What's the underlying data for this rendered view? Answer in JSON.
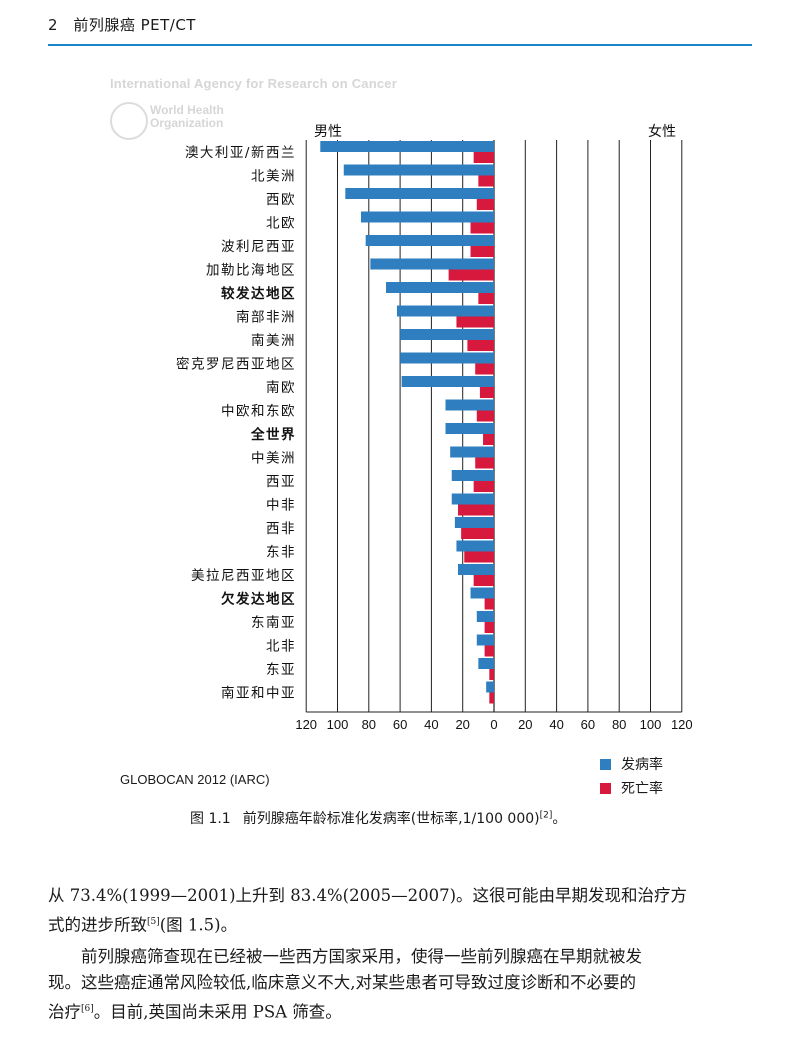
{
  "header": {
    "page": "2",
    "title": "前列腺癌 PET/CT"
  },
  "watermark": {
    "agency": "International Agency for Research on Cancer",
    "who_line1": "World Health",
    "who_line2": "Organization"
  },
  "chart_data": {
    "type": "bar",
    "orientation": "horizontal-butterfly",
    "left_label": "男性",
    "right_label": "女性",
    "categories": [
      "澳大利亚/新西兰",
      "北美洲",
      "西欧",
      "北欧",
      "波利尼西亚",
      "加勒比海地区",
      "较发达地区",
      "南部非洲",
      "南美洲",
      "密克罗尼西亚地区",
      "南欧",
      "中欧和东欧",
      "全世界",
      "中美洲",
      "西亚",
      "中非",
      "西非",
      "东非",
      "美拉尼西亚地区",
      "欠发达地区",
      "东南亚",
      "北非",
      "东亚",
      "南亚和中亚"
    ],
    "bold_categories": [
      "较发达地区",
      "全世界",
      "欠发达地区"
    ],
    "series": [
      {
        "name": "发病率",
        "color": "#2f7fc0",
        "values": [
          111,
          96,
          95,
          85,
          82,
          79,
          69,
          62,
          60,
          60,
          59,
          31,
          31,
          28,
          27,
          27,
          25,
          24,
          23,
          15,
          11,
          11,
          10,
          5
        ]
      },
      {
        "name": "死亡率",
        "color": "#d7193e",
        "values": [
          13,
          10,
          11,
          15,
          15,
          29,
          10,
          24,
          17,
          12,
          9,
          11,
          7,
          12,
          13,
          23,
          21,
          19,
          13,
          6,
          6,
          6,
          3,
          3
        ]
      }
    ],
    "x_ticks": [
      "120",
      "100",
      "80",
      "60",
      "40",
      "20",
      "0",
      "20",
      "40",
      "60",
      "80",
      "100",
      "120"
    ],
    "xlim": [
      -120,
      120
    ],
    "grid": true,
    "legend": "bottom-right"
  },
  "source": "GLOBOCAN 2012 (IARC)",
  "caption": {
    "number": "图 1.1",
    "text": "前列腺癌年龄标准化发病率(世标率,1/100 000)",
    "ref": "[2]",
    "end": "。"
  },
  "para1": {
    "line1": "从 73.4%(1999—2001)上升到 83.4%(2005—2007)。这很可能由早期发现和治疗方",
    "line2a": "式的进步所致",
    "ref": "[5]",
    "line2b": "(图 1.5)。"
  },
  "para2": {
    "line1": "前列腺癌筛查现在已经被一些西方国家采用，使得一些前列腺癌在早期就被发",
    "line2": "现。这些癌症通常风险较低,临床意义不大,对某些患者可导致过度诊断和不必要的",
    "line3a": "治疗",
    "ref": "[6]",
    "line3b": "。目前,英国尚未采用 PSA 筛查。"
  }
}
